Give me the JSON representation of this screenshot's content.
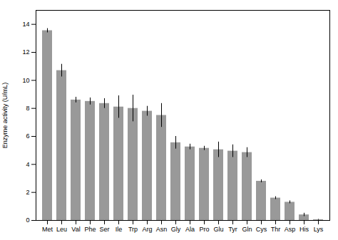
{
  "chart_data": {
    "type": "bar",
    "categories": [
      "Met",
      "Leu",
      "Val",
      "Phe",
      "Ser",
      "Ile",
      "Trp",
      "Arg",
      "Asn",
      "Gly",
      "Ala",
      "Pro",
      "Glu",
      "Tyr",
      "Gln",
      "Cys",
      "Thr",
      "Asp",
      "His",
      "Lys"
    ],
    "values": [
      13.55,
      10.7,
      8.6,
      8.5,
      8.35,
      8.1,
      8.0,
      7.8,
      7.5,
      5.55,
      5.25,
      5.15,
      5.05,
      4.95,
      4.85,
      2.8,
      1.6,
      1.3,
      0.4,
      0.05
    ],
    "errors": [
      0.15,
      0.45,
      0.2,
      0.25,
      0.35,
      0.8,
      0.95,
      0.35,
      0.85,
      0.45,
      0.2,
      0.15,
      0.55,
      0.45,
      0.35,
      0.1,
      0.1,
      0.1,
      0.12,
      0.03
    ],
    "color": "#999999",
    "ylabel": "Enzyme activity (U/mL)",
    "ylim": [
      0,
      15
    ],
    "yticks": [
      0,
      2,
      4,
      6,
      8,
      10,
      12,
      14
    ],
    "grid": false
  }
}
